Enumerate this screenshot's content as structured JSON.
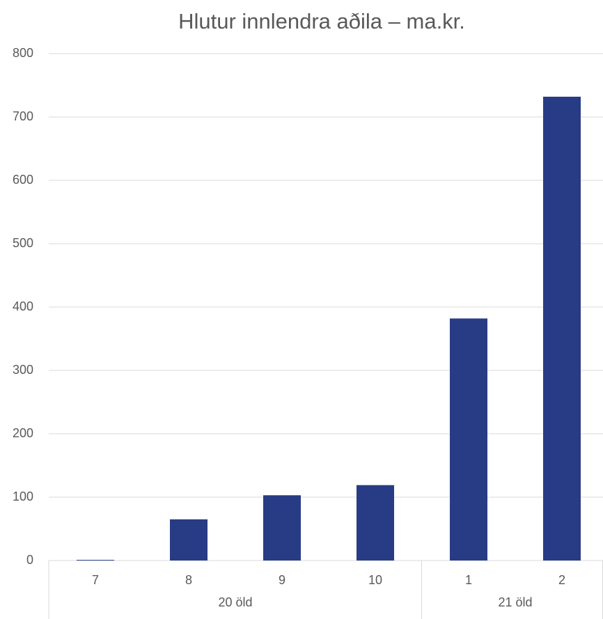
{
  "chart_data": {
    "type": "bar",
    "title": "Hlutur innlendra aðila – ma.kr.",
    "groups": [
      {
        "name": "20 öld",
        "categories": [
          "7",
          "8",
          "9",
          "10"
        ]
      },
      {
        "name": "21 öld",
        "categories": [
          "1",
          "2"
        ]
      }
    ],
    "values": [
      1,
      65,
      103,
      119,
      382,
      732
    ],
    "color": "#283c85",
    "ylim": [
      0,
      800
    ],
    "yticks": [
      0,
      100,
      200,
      300,
      400,
      500,
      600,
      700,
      800
    ],
    "grid": true
  }
}
